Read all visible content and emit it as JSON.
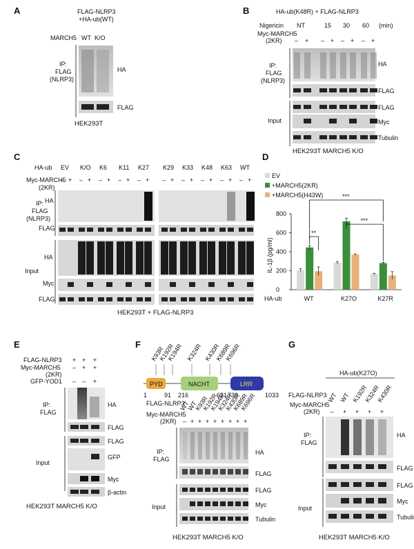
{
  "panels": [
    "A",
    "B",
    "C",
    "D",
    "E",
    "F",
    "G"
  ],
  "A": {
    "header": [
      "FLAG-NLRP3",
      "+HA-ub(WT)"
    ],
    "row": "MARCH5",
    "lanes": [
      "WT",
      "K/O"
    ],
    "ip": [
      "IP:",
      "FLAG",
      "(NLRP3)"
    ],
    "bands": [
      "HA",
      "FLAG"
    ],
    "cell": "HEK293T"
  },
  "B": {
    "header": "HA-ub(K48R) + FLAG-NLRP3",
    "nigericin_label": "Nigericin",
    "timepoints": [
      "NT",
      "15",
      "30",
      "60"
    ],
    "unit": "(min)",
    "march_label": "Myc-MARCH5",
    "march_sub": "(2KR)",
    "signs": [
      "–",
      "+",
      "–",
      "+",
      "–",
      "+",
      "–",
      "+"
    ],
    "ip": [
      "IP:",
      "FLAG",
      "(NLRP3)"
    ],
    "ip_bands": [
      "HA",
      "FLAG"
    ],
    "input_label": "Input",
    "input_bands": [
      "FLAG",
      "Myc",
      "Tubulin"
    ],
    "cell": "HEK293T MARCH5 K/O"
  },
  "C": {
    "haub_label": "HA-ub",
    "groups": [
      "EV",
      "K/O",
      "K6",
      "K11",
      "K27",
      "K29",
      "K33",
      "K48",
      "K63",
      "WT"
    ],
    "march_label": "Myc-MARCH5",
    "march_sub": "(2KR)",
    "ip": [
      "IP:",
      "FLAG",
      "(NLRP3)"
    ],
    "ip_bands": [
      "HA",
      "FLAG"
    ],
    "input_label": "Input",
    "input_bands": [
      "HA",
      "Myc",
      "FLAG"
    ],
    "cell": "HEK293T + FLAG-NLRP3"
  },
  "D": {
    "chart_data": {
      "type": "bar",
      "categories": [
        "WT",
        "K27O",
        "K27R"
      ],
      "xlabel": "HA-ub",
      "ylabel": "IL-1β (pg/ml)",
      "ylim": [
        0,
        800
      ],
      "yticks": [
        0,
        200,
        400,
        600,
        800
      ],
      "series": [
        {
          "name": "EV",
          "color": "#d9d9d9",
          "values": [
            205,
            285,
            165
          ],
          "err": [
            15,
            12,
            8
          ]
        },
        {
          "name": "+MARCH5(2KR)",
          "color": "#3b8f3b",
          "values": [
            445,
            720,
            280
          ],
          "err": [
            20,
            35,
            8
          ]
        },
        {
          "name": "+MARCH5(H43W)",
          "color": "#e8b07a",
          "values": [
            195,
            370,
            150
          ],
          "err": [
            45,
            8,
            40
          ]
        }
      ],
      "significance": [
        "**",
        "***",
        "***"
      ],
      "legend_position": "top-left"
    }
  },
  "E": {
    "rows": [
      "FLAG-NLRP3",
      "Myc-MARCH5",
      "(2KR)",
      "GFP-YOD1"
    ],
    "signs": [
      [
        "+",
        "+",
        "+"
      ],
      [
        "–",
        "+",
        "+"
      ],
      [
        "–",
        "–",
        "+"
      ]
    ],
    "ip": [
      "IP:",
      "FLAG"
    ],
    "ip_bands": [
      "HA",
      "FLAG"
    ],
    "input_label": "Input",
    "input_bands": [
      "FLAG",
      "GFP",
      "Myc",
      "β-actin"
    ],
    "cell": "HEK293T MARCH5 K/O"
  },
  "F": {
    "mutations": [
      "K93R",
      "K192R",
      "K194R",
      "K324R",
      "K430R",
      "K689R",
      "K696R"
    ],
    "domains": [
      {
        "name": "PYD",
        "color": "#e9a93d"
      },
      {
        "name": "NACHT",
        "color": "#a8cf7c"
      },
      {
        "name": "LRR",
        "color": "#2d3aa8"
      }
    ],
    "positions": [
      "1",
      "91",
      "216",
      "621",
      "739",
      "1033"
    ],
    "row1": "FLAG-NLRP3",
    "lanes": [
      "WT",
      "WT",
      "K93R",
      "K192R",
      "K194R",
      "K324R",
      "K430R",
      "K689R",
      "K696R"
    ],
    "march_label": "Myc-MARCH5",
    "march_sub": "(2KR)",
    "signs": [
      "–",
      "+",
      "+",
      "+",
      "+",
      "+",
      "+",
      "+",
      "+"
    ],
    "ip": [
      "IP:",
      "FLAG"
    ],
    "ip_bands": [
      "HA",
      "FLAG"
    ],
    "input_label": "Input",
    "input_bands": [
      "FLAG",
      "Myc",
      "Tubulin"
    ],
    "cell": "HEK293T MARCH5 K/O"
  },
  "G": {
    "header": "HA-ub(K27O)",
    "row1": "FLAG-NLRP3",
    "lanes": [
      "WT",
      "WT",
      "K192R",
      "K324R",
      "K430R"
    ],
    "march_label": "Myc-MARCH5",
    "march_sub": "(2KR)",
    "signs": [
      "–",
      "+",
      "+",
      "+",
      "+"
    ],
    "ip": [
      "IP:",
      "FLAG"
    ],
    "ip_bands": [
      "HA",
      "FLAG"
    ],
    "input_label": "Input",
    "input_bands": [
      "FLAG",
      "Myc",
      "Tubulin"
    ],
    "cell": "HEK293T MARCH5 K/O"
  }
}
